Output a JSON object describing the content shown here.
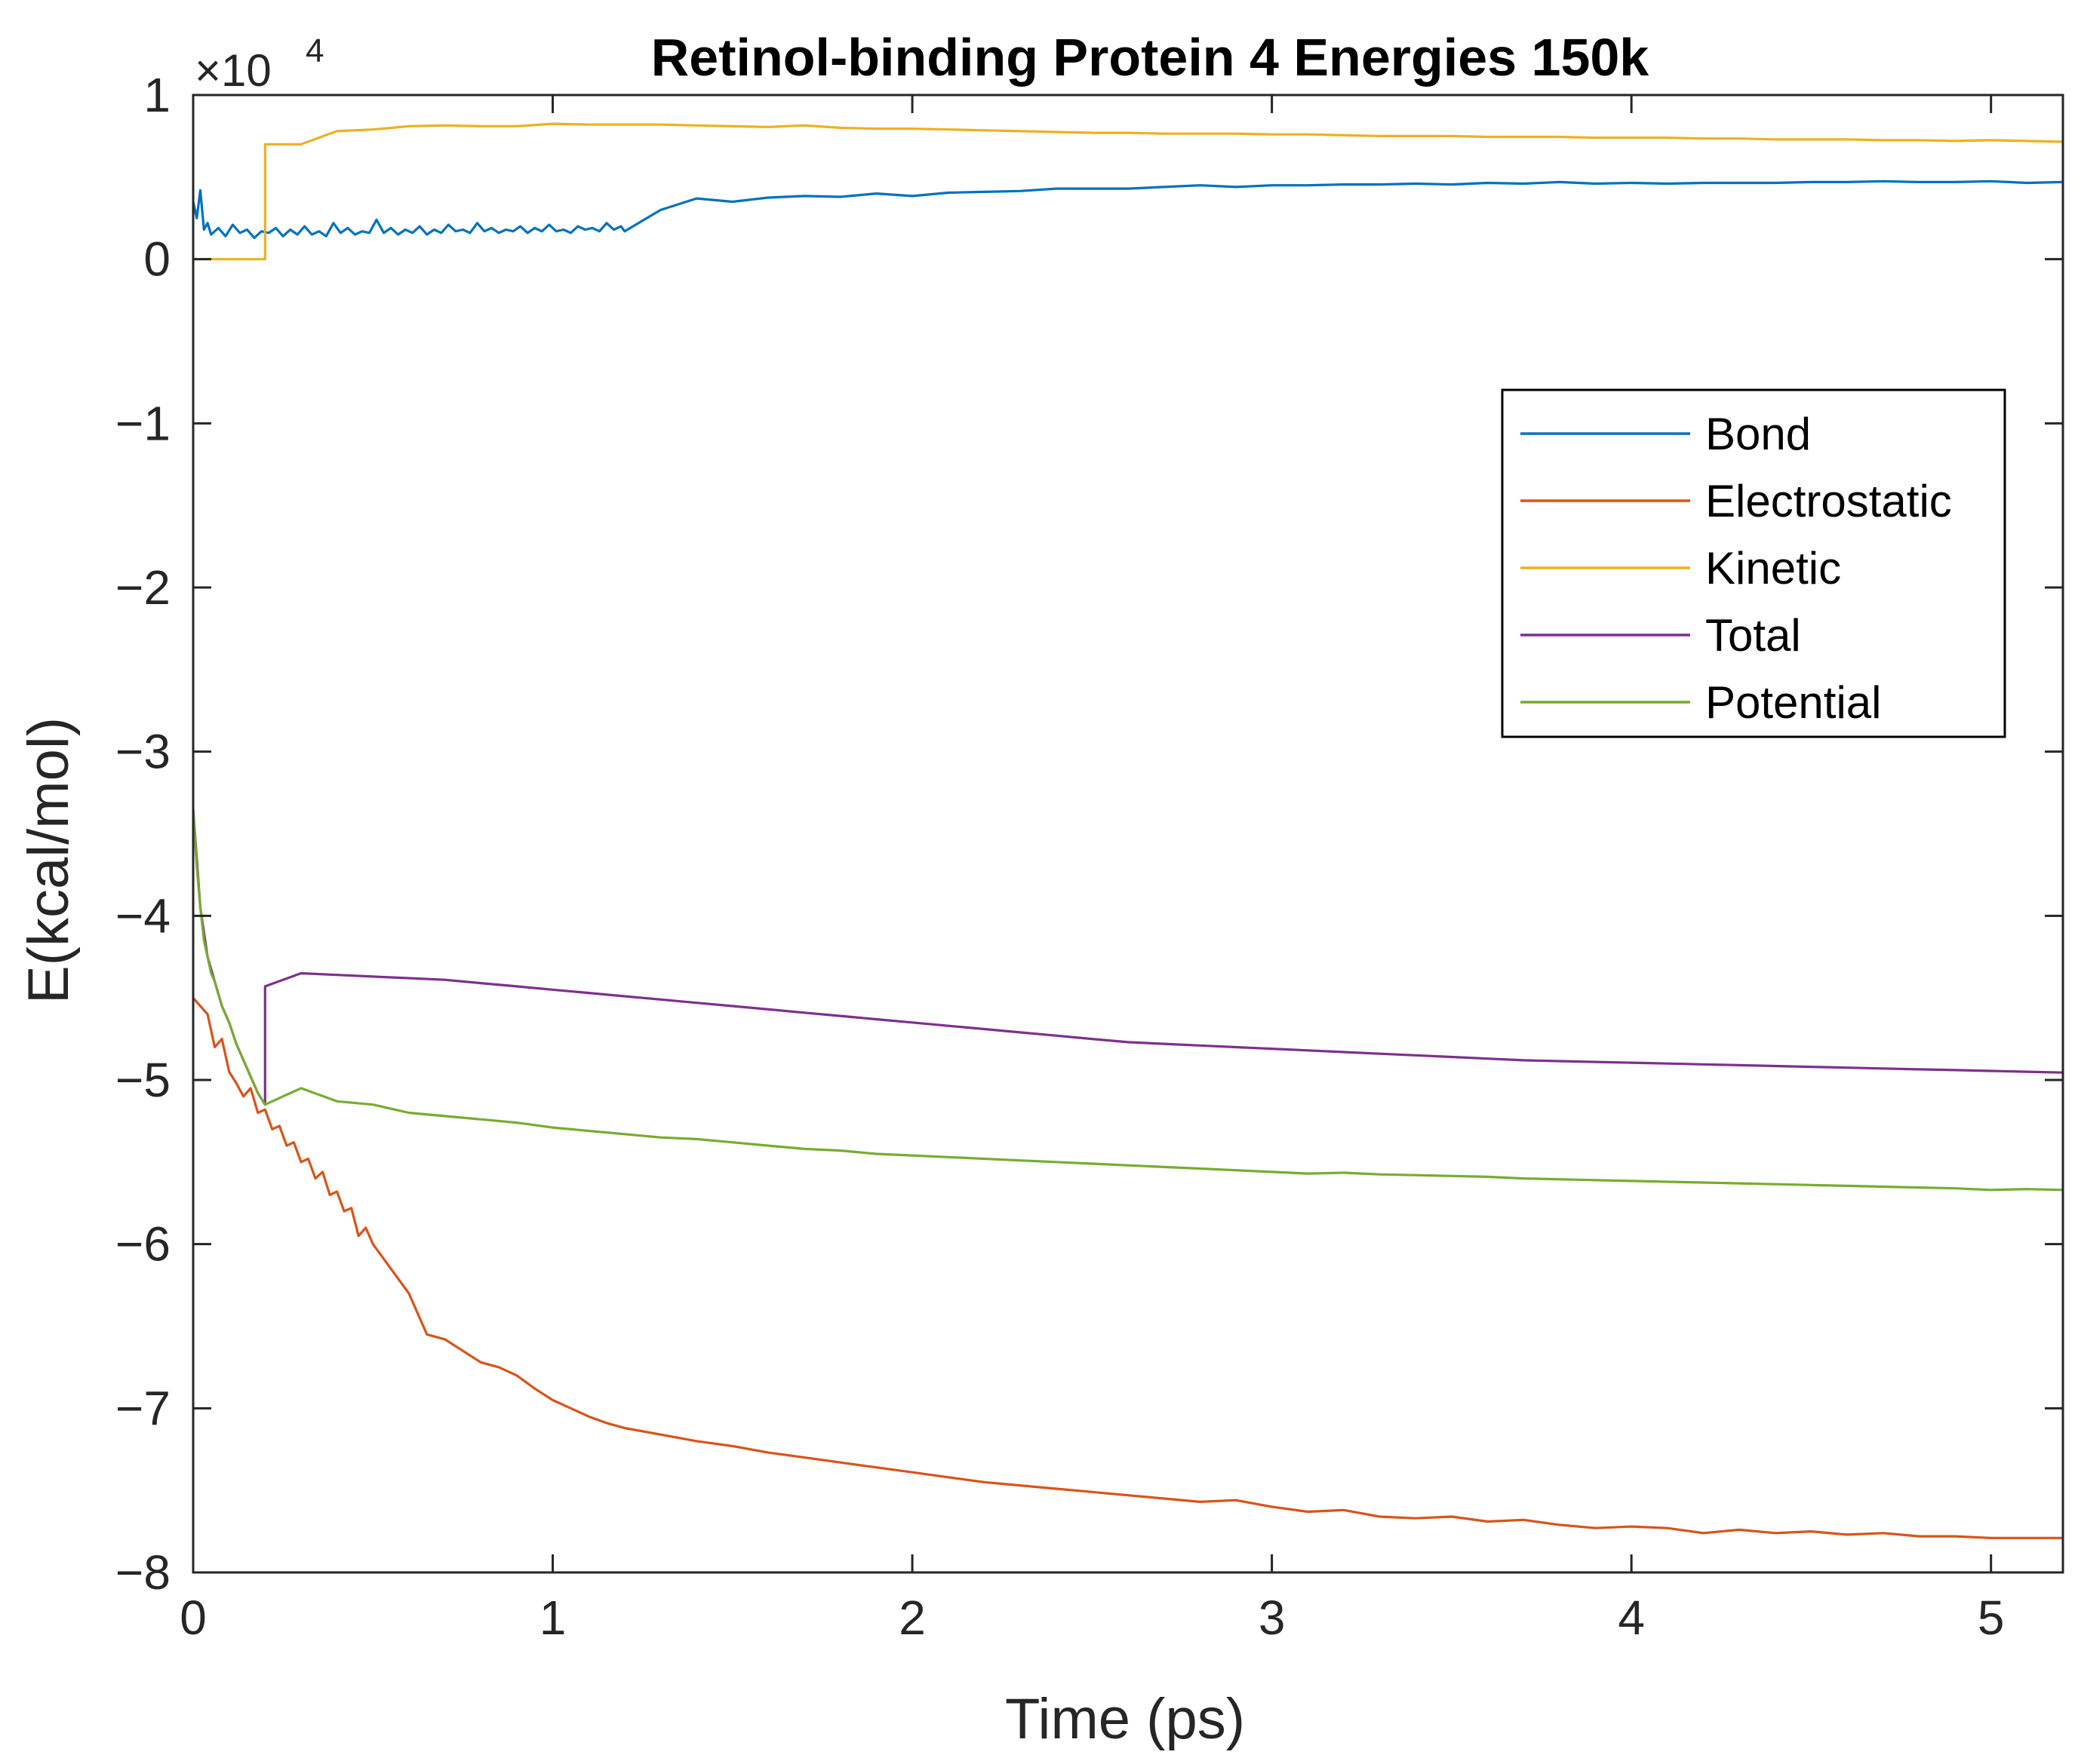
{
  "chart_data": {
    "type": "line",
    "title": "Retinol-binding Protein 4 Energies 150k",
    "xlabel": "Time (ps)",
    "ylabel": "E(kcal/mol)",
    "y_scale_factor": "×10",
    "y_scale_exponent": "4",
    "xlim": [
      0,
      5.2
    ],
    "ylim": [
      -8,
      1
    ],
    "x_ticks": [
      0,
      1,
      2,
      3,
      4,
      5
    ],
    "x_tick_labels": [
      "0",
      "1",
      "2",
      "3",
      "4",
      "5"
    ],
    "y_ticks": [
      1,
      0,
      -1,
      -2,
      -3,
      -4,
      -5,
      -6,
      -7,
      -8
    ],
    "y_tick_labels": [
      "1",
      "0",
      "−1",
      "−2",
      "−3",
      "−4",
      "−5",
      "−6",
      "−7",
      "−8"
    ],
    "grid": false,
    "legend_position": "right, upper-middle",
    "series": [
      {
        "name": "Bond",
        "color": "#0072BD",
        "x": [
          0,
          0.01,
          0.02,
          0.03,
          0.04,
          0.05,
          0.07,
          0.09,
          0.11,
          0.13,
          0.15,
          0.17,
          0.19,
          0.21,
          0.23,
          0.25,
          0.27,
          0.29,
          0.31,
          0.33,
          0.35,
          0.37,
          0.39,
          0.41,
          0.43,
          0.45,
          0.47,
          0.49,
          0.51,
          0.53,
          0.55,
          0.57,
          0.59,
          0.61,
          0.63,
          0.65,
          0.67,
          0.69,
          0.71,
          0.73,
          0.75,
          0.77,
          0.79,
          0.81,
          0.83,
          0.85,
          0.87,
          0.89,
          0.91,
          0.93,
          0.95,
          0.97,
          0.99,
          1.01,
          1.03,
          1.05,
          1.07,
          1.09,
          1.11,
          1.13,
          1.15,
          1.17,
          1.19,
          1.2,
          1.3,
          1.4,
          1.5,
          1.6,
          1.7,
          1.8,
          1.9,
          2.0,
          2.1,
          2.2,
          2.3,
          2.4,
          2.5,
          2.6,
          2.7,
          2.8,
          2.9,
          3.0,
          3.1,
          3.2,
          3.3,
          3.4,
          3.5,
          3.6,
          3.7,
          3.8,
          3.9,
          4.0,
          4.1,
          4.2,
          4.3,
          4.4,
          4.5,
          4.6,
          4.7,
          4.8,
          4.9,
          5.0,
          5.1,
          5.2
        ],
        "y": [
          3500,
          2500,
          4200,
          1800,
          2200,
          1500,
          1900,
          1400,
          2100,
          1600,
          1800,
          1300,
          1700,
          1600,
          1900,
          1400,
          1800,
          1500,
          2000,
          1500,
          1700,
          1400,
          2200,
          1600,
          1900,
          1500,
          1700,
          1600,
          2400,
          1600,
          1900,
          1500,
          1800,
          1600,
          2000,
          1500,
          1800,
          1600,
          2100,
          1700,
          1800,
          1600,
          2200,
          1700,
          1900,
          1600,
          1800,
          1700,
          2000,
          1600,
          1900,
          1700,
          2100,
          1700,
          1800,
          1600,
          2000,
          1800,
          1900,
          1700,
          2200,
          1800,
          2000,
          1700,
          3000,
          3700,
          3500,
          3750,
          3850,
          3800,
          4000,
          3850,
          4050,
          4100,
          4150,
          4300,
          4300,
          4300,
          4400,
          4500,
          4400,
          4500,
          4500,
          4550,
          4550,
          4600,
          4550,
          4650,
          4600,
          4700,
          4600,
          4650,
          4600,
          4650,
          4650,
          4650,
          4700,
          4700,
          4750,
          4700,
          4700,
          4750,
          4650,
          4700
        ]
      },
      {
        "name": "Electrostatic",
        "color": "#D95319",
        "x": [
          0,
          0.02,
          0.04,
          0.06,
          0.08,
          0.1,
          0.12,
          0.14,
          0.16,
          0.18,
          0.2,
          0.22,
          0.24,
          0.26,
          0.28,
          0.3,
          0.32,
          0.34,
          0.36,
          0.38,
          0.4,
          0.42,
          0.44,
          0.46,
          0.48,
          0.5,
          0.55,
          0.6,
          0.65,
          0.7,
          0.75,
          0.8,
          0.85,
          0.9,
          0.95,
          1.0,
          1.05,
          1.1,
          1.15,
          1.2,
          1.3,
          1.4,
          1.5,
          1.6,
          1.7,
          1.8,
          1.9,
          2.0,
          2.1,
          2.2,
          2.3,
          2.4,
          2.5,
          2.6,
          2.7,
          2.8,
          2.9,
          3.0,
          3.1,
          3.2,
          3.3,
          3.4,
          3.5,
          3.6,
          3.7,
          3.8,
          3.9,
          4.0,
          4.1,
          4.2,
          4.3,
          4.4,
          4.5,
          4.6,
          4.7,
          4.8,
          4.9,
          5.0,
          5.1,
          5.2
        ],
        "y": [
          -45000,
          -45500,
          -46000,
          -48000,
          -47500,
          -49500,
          -50200,
          -51000,
          -50500,
          -52000,
          -51800,
          -53000,
          -52800,
          -54000,
          -53800,
          -55000,
          -54800,
          -56000,
          -55600,
          -57000,
          -56800,
          -58000,
          -57800,
          -59500,
          -59000,
          -60000,
          -61500,
          -63000,
          -65500,
          -65800,
          -66500,
          -67200,
          -67500,
          -68000,
          -68800,
          -69500,
          -70000,
          -70500,
          -70900,
          -71200,
          -71600,
          -72000,
          -72300,
          -72700,
          -73000,
          -73300,
          -73600,
          -73900,
          -74200,
          -74500,
          -74700,
          -74900,
          -75100,
          -75300,
          -75500,
          -75700,
          -75600,
          -76000,
          -76300,
          -76200,
          -76600,
          -76700,
          -76600,
          -76900,
          -76800,
          -77100,
          -77300,
          -77200,
          -77300,
          -77600,
          -77400,
          -77600,
          -77500,
          -77700,
          -77600,
          -77800,
          -77800,
          -77900,
          -77900,
          -77900
        ]
      },
      {
        "name": "Kinetic",
        "color": "#EDB120",
        "x": [
          0,
          0.2,
          0.2,
          0.3,
          0.4,
          0.5,
          0.6,
          0.7,
          0.8,
          0.9,
          1.0,
          1.1,
          1.2,
          1.3,
          1.4,
          1.5,
          1.6,
          1.7,
          1.8,
          1.9,
          2.0,
          2.1,
          2.2,
          2.3,
          2.4,
          2.5,
          2.6,
          2.7,
          2.8,
          2.9,
          3.0,
          3.1,
          3.2,
          3.3,
          3.4,
          3.5,
          3.6,
          3.7,
          3.8,
          3.9,
          4.0,
          4.1,
          4.2,
          4.3,
          4.4,
          4.5,
          4.6,
          4.7,
          4.8,
          4.9,
          5.0,
          5.1,
          5.2
        ],
        "y": [
          0,
          0,
          7000,
          7000,
          7800,
          7900,
          8100,
          8150,
          8100,
          8100,
          8250,
          8200,
          8200,
          8200,
          8150,
          8100,
          8050,
          8150,
          8000,
          7950,
          7950,
          7900,
          7850,
          7800,
          7750,
          7700,
          7700,
          7650,
          7650,
          7650,
          7600,
          7600,
          7550,
          7500,
          7500,
          7500,
          7450,
          7450,
          7450,
          7400,
          7400,
          7400,
          7350,
          7350,
          7300,
          7300,
          7300,
          7250,
          7250,
          7200,
          7250,
          7200,
          7150
        ]
      },
      {
        "name": "Total",
        "color": "#7E2F8E",
        "x": [
          0,
          0.02,
          0.04,
          0.06,
          0.08,
          0.1,
          0.12,
          0.14,
          0.16,
          0.18,
          0.2,
          0.2,
          0.3,
          0.4,
          0.5,
          0.6,
          0.7,
          0.8,
          0.9,
          1.0,
          1.1,
          1.2,
          1.3,
          1.4,
          1.5,
          1.6,
          1.7,
          1.8,
          1.9,
          2.0,
          2.1,
          2.2,
          2.3,
          2.4,
          2.5,
          2.6,
          2.7,
          2.8,
          2.9,
          3.0,
          3.1,
          3.2,
          3.3,
          3.4,
          3.5,
          3.6,
          3.7,
          3.8,
          3.9,
          4.0,
          4.1,
          4.2,
          4.3,
          4.4,
          4.5,
          4.6,
          4.7,
          4.8,
          4.9,
          5.0,
          5.1,
          5.2
        ],
        "y": [
          -33500,
          -39500,
          -42500,
          -44000,
          -45500,
          -46500,
          -47800,
          -48800,
          -49800,
          -50800,
          -51500,
          -44300,
          -43500,
          -43600,
          -43700,
          -43800,
          -43900,
          -44100,
          -44300,
          -44500,
          -44700,
          -44900,
          -45100,
          -45300,
          -45500,
          -45700,
          -45900,
          -46100,
          -46300,
          -46500,
          -46700,
          -46900,
          -47100,
          -47300,
          -47500,
          -47700,
          -47800,
          -47900,
          -48000,
          -48100,
          -48200,
          -48300,
          -48400,
          -48500,
          -48600,
          -48700,
          -48800,
          -48850,
          -48900,
          -48950,
          -49000,
          -49050,
          -49100,
          -49150,
          -49200,
          -49250,
          -49300,
          -49350,
          -49400,
          -49450,
          -49500,
          -49550
        ]
      },
      {
        "name": "Potential",
        "color": "#77AC30",
        "x": [
          0,
          0.01,
          0.02,
          0.03,
          0.04,
          0.05,
          0.06,
          0.08,
          0.1,
          0.12,
          0.14,
          0.16,
          0.18,
          0.2,
          0.3,
          0.4,
          0.5,
          0.6,
          0.7,
          0.8,
          0.9,
          1.0,
          1.1,
          1.2,
          1.3,
          1.4,
          1.5,
          1.6,
          1.7,
          1.8,
          1.9,
          2.0,
          2.1,
          2.2,
          2.3,
          2.4,
          2.5,
          2.6,
          2.7,
          2.8,
          2.9,
          3.0,
          3.1,
          3.2,
          3.3,
          3.4,
          3.5,
          3.6,
          3.7,
          3.8,
          3.9,
          4.0,
          4.1,
          4.2,
          4.3,
          4.4,
          4.5,
          4.6,
          4.7,
          4.8,
          4.9,
          5.0,
          5.1,
          5.2
        ],
        "y": [
          -33500,
          -37000,
          -39500,
          -41500,
          -42500,
          -43500,
          -44000,
          -45500,
          -46500,
          -47800,
          -48800,
          -49800,
          -50800,
          -51500,
          -50500,
          -51300,
          -51500,
          -52000,
          -52200,
          -52400,
          -52600,
          -52900,
          -53100,
          -53300,
          -53500,
          -53600,
          -53800,
          -54000,
          -54200,
          -54300,
          -54500,
          -54600,
          -54700,
          -54800,
          -54900,
          -55000,
          -55100,
          -55200,
          -55300,
          -55400,
          -55500,
          -55600,
          -55700,
          -55650,
          -55750,
          -55800,
          -55850,
          -55900,
          -56000,
          -56050,
          -56100,
          -56150,
          -56200,
          -56250,
          -56300,
          -56350,
          -56400,
          -56450,
          -56500,
          -56550,
          -56600,
          -56700,
          -56650,
          -56700
        ]
      }
    ]
  }
}
